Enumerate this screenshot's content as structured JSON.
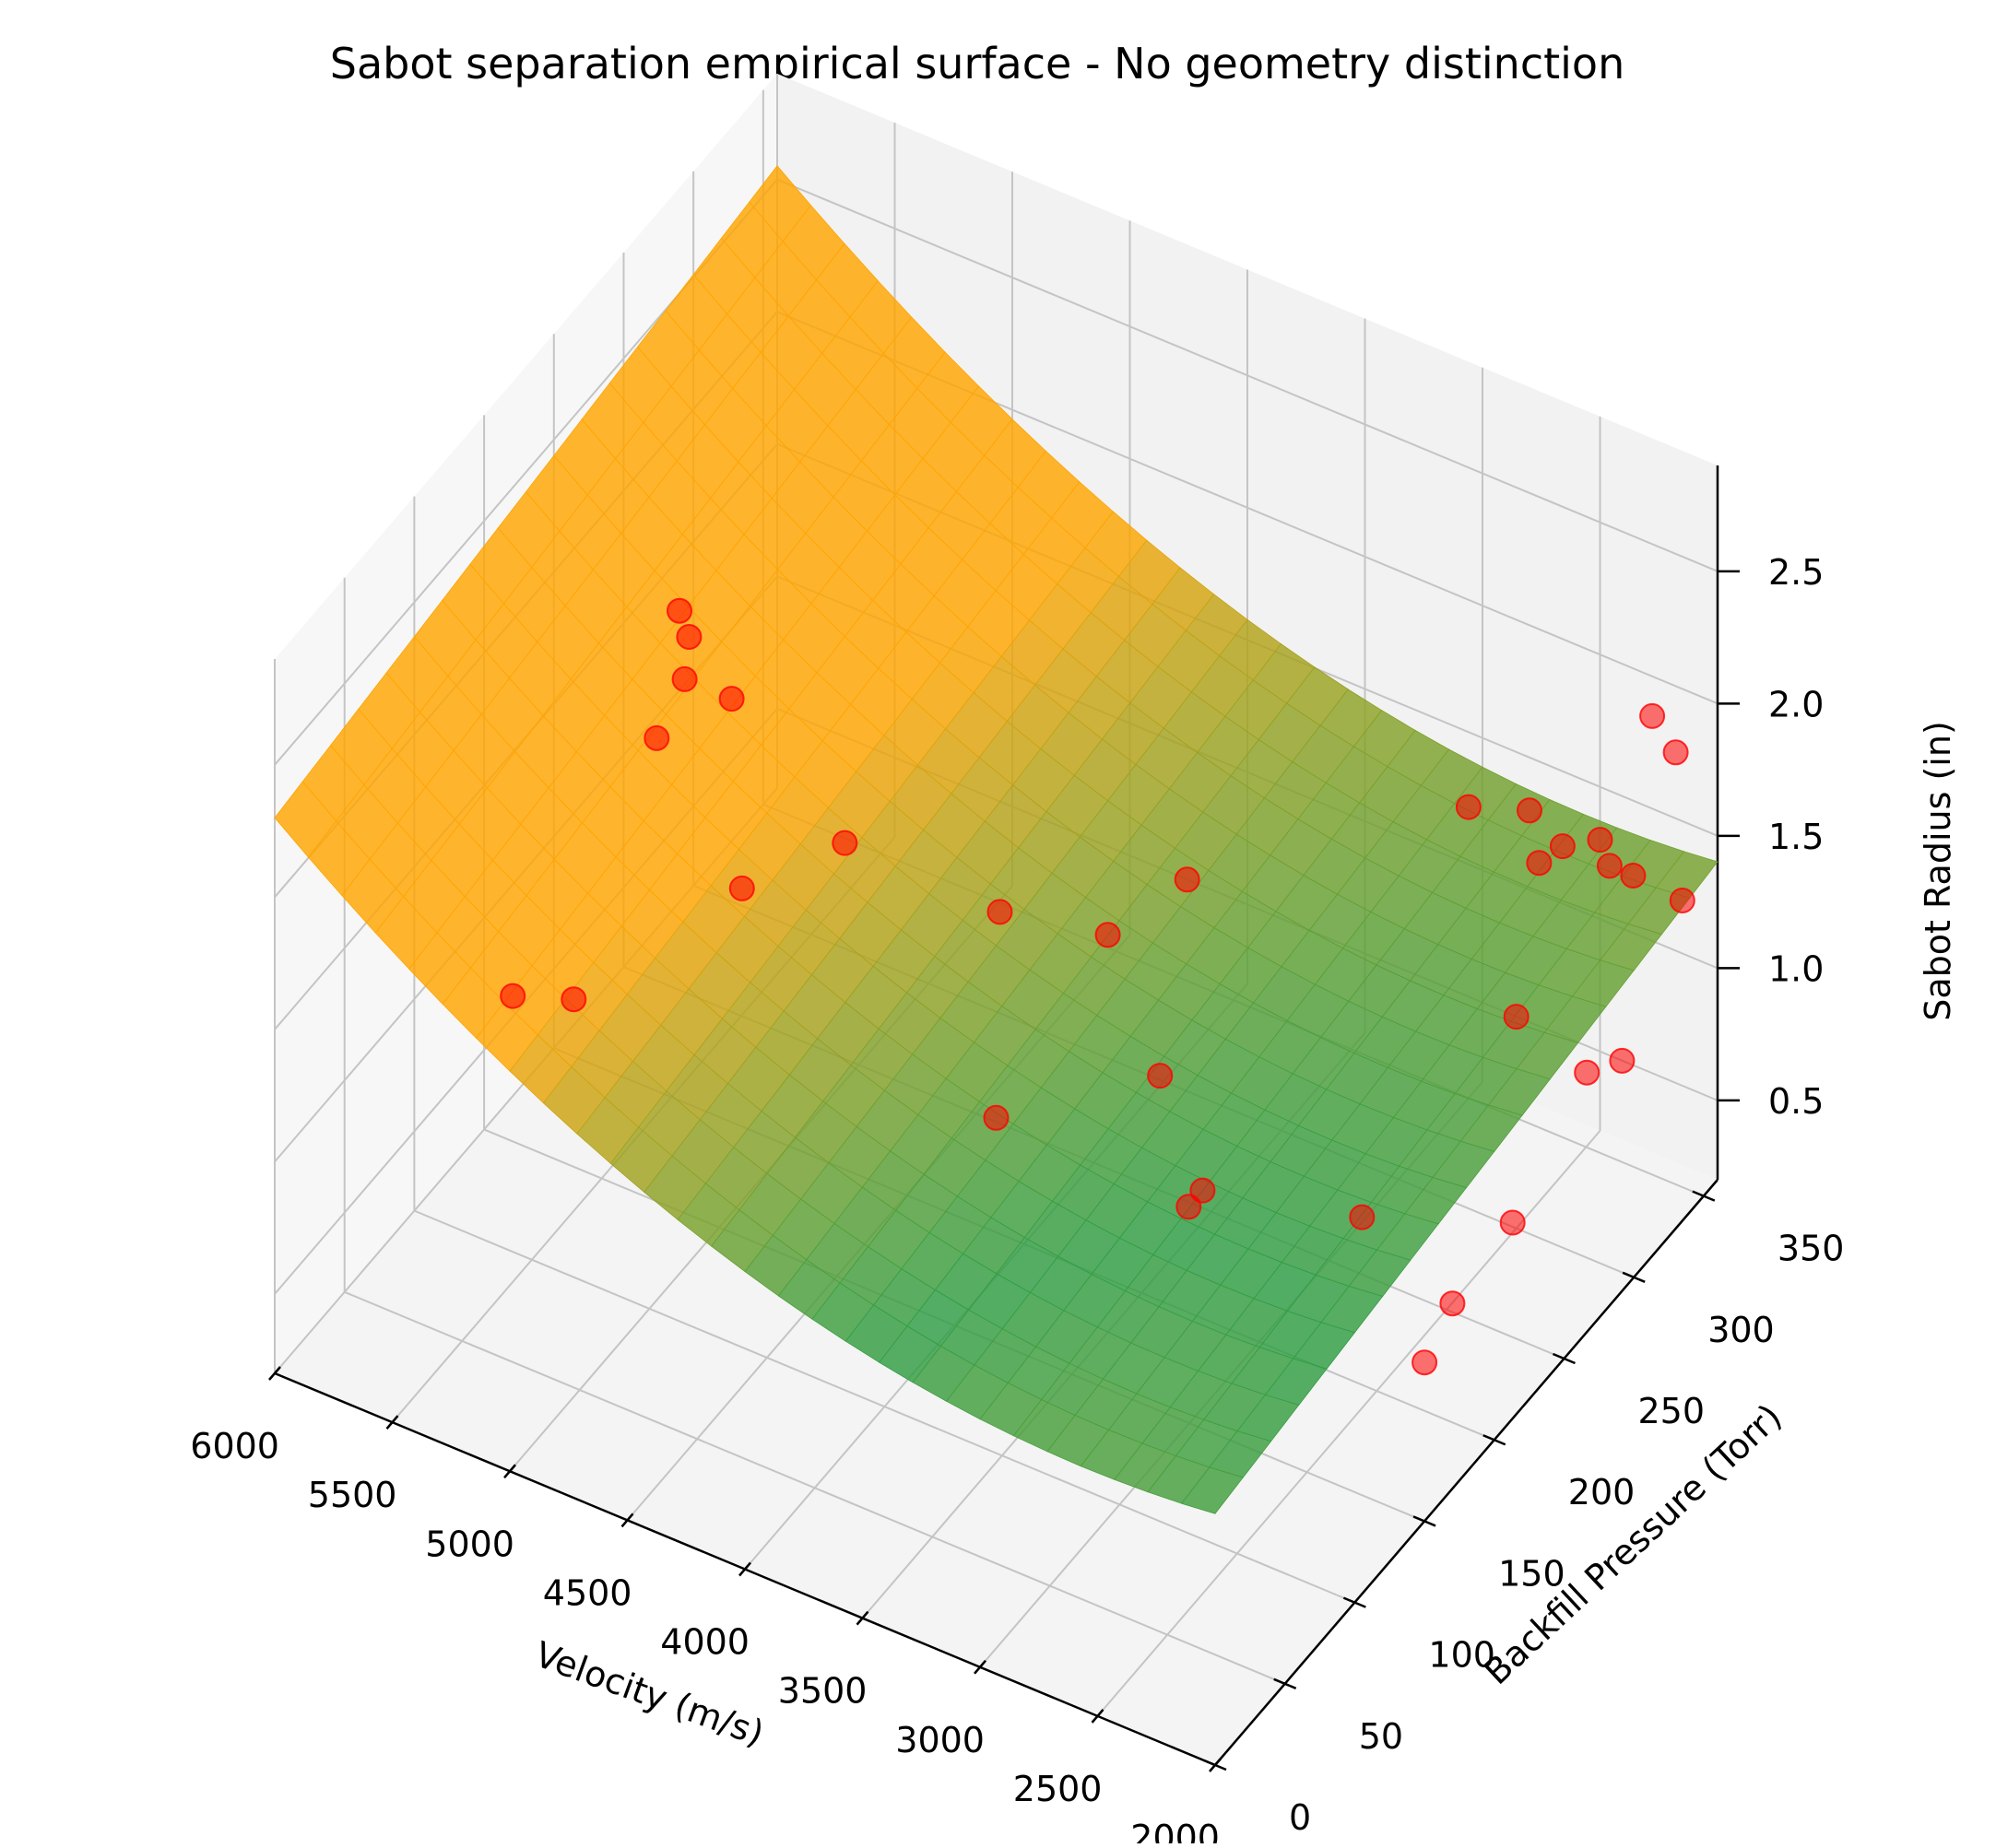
{
  "chart_data": {
    "type": "scatter",
    "subtype": "3d-surface-with-scatter",
    "title": "Sabot separation empirical surface - No geometry distinction",
    "xlabel": "Velocity (m/s)",
    "ylabel": "Backfill Pressure (Torr)",
    "zlabel": "Sabot Radius (in)",
    "x_ticks": [
      "6000",
      "5500",
      "5000",
      "4500",
      "4000",
      "3500",
      "3000",
      "2500",
      "2000"
    ],
    "y_ticks": [
      "0",
      "50",
      "100",
      "150",
      "200",
      "250",
      "300",
      "350"
    ],
    "z_ticks": [
      "0.5",
      "1.0",
      "1.5",
      "2.0",
      "2.5"
    ],
    "xlim": [
      6000,
      2000
    ],
    "ylim": [
      0,
      360
    ],
    "zlim": [
      0.2,
      2.9
    ],
    "grid": true,
    "surface_colormap": [
      "#ffa500",
      "#2e9e44"
    ],
    "point_color": "#ff0000",
    "points": [
      {
        "velocity": 6000,
        "pressure": 290,
        "radius": 1.3
      },
      {
        "velocity": 5900,
        "pressure": 280,
        "radius": 1.3
      },
      {
        "velocity": 5800,
        "pressure": 260,
        "radius": 1.3
      },
      {
        "velocity": 5800,
        "pressure": 240,
        "radius": 1.2
      },
      {
        "velocity": 5700,
        "pressure": 120,
        "radius": 1.0
      },
      {
        "velocity": 5600,
        "pressure": 260,
        "radius": 1.3
      },
      {
        "velocity": 5500,
        "pressure": 130,
        "radius": 1.0
      },
      {
        "velocity": 5200,
        "pressure": 200,
        "radius": 1.1
      },
      {
        "velocity": 5000,
        "pressure": 240,
        "radius": 1.1
      },
      {
        "velocity": 4400,
        "pressure": 250,
        "radius": 1.0
      },
      {
        "velocity": 4000,
        "pressure": 180,
        "radius": 0.8
      },
      {
        "velocity": 4000,
        "pressure": 260,
        "radius": 1.0
      },
      {
        "velocity": 3900,
        "pressure": 300,
        "radius": 1.0
      },
      {
        "velocity": 3600,
        "pressure": 230,
        "radius": 0.8
      },
      {
        "velocity": 3300,
        "pressure": 200,
        "radius": 0.6
      },
      {
        "velocity": 3300,
        "pressure": 210,
        "radius": 0.6
      },
      {
        "velocity": 3000,
        "pressure": 350,
        "radius": 1.3
      },
      {
        "velocity": 2800,
        "pressure": 240,
        "radius": 0.5
      },
      {
        "velocity": 2800,
        "pressure": 360,
        "radius": 1.3
      },
      {
        "velocity": 2700,
        "pressure": 350,
        "radius": 1.2
      },
      {
        "velocity": 2600,
        "pressure": 350,
        "radius": 1.3
      },
      {
        "velocity": 2500,
        "pressure": 360,
        "radius": 1.3
      },
      {
        "velocity": 2500,
        "pressure": 300,
        "radius": 1.0
      },
      {
        "velocity": 2400,
        "pressure": 350,
        "radius": 1.3
      },
      {
        "velocity": 2300,
        "pressure": 350,
        "radius": 1.3
      },
      {
        "velocity": 2200,
        "pressure": 300,
        "radius": 0.9
      },
      {
        "velocity": 2150,
        "pressure": 360,
        "radius": 1.2
      },
      {
        "velocity": 2100,
        "pressure": 230,
        "radius": 0.8
      },
      {
        "velocity": 2050,
        "pressure": 300,
        "radius": 1.0
      },
      {
        "velocity": 2000,
        "pressure": 150,
        "radius": 0.8
      },
      {
        "velocity": 2000,
        "pressure": 170,
        "radius": 0.9
      },
      {
        "velocity": 2100,
        "pressure": 330,
        "radius": 2.1
      },
      {
        "velocity": 2000,
        "pressure": 330,
        "radius": 2.0
      }
    ]
  }
}
